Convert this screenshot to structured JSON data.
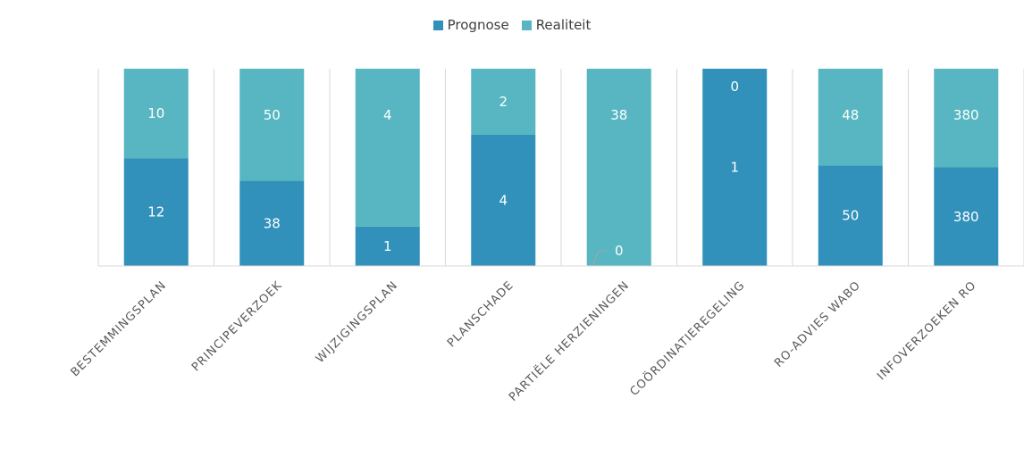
{
  "chart_data": {
    "type": "bar",
    "stacked": true,
    "normalized": true,
    "categories": [
      "BESTEMMINGSPLAN",
      "PRINCIPEVERZOEK",
      "WIJZIGINGSPLAN",
      "PLANSCHADE",
      "PARTIËLE HERZIENINGEN",
      "COÖRDINATIEREGELING",
      "RO-ADVIES WABO",
      "INFOVERZOEKEN RO"
    ],
    "series": [
      {
        "name": "Prognose",
        "values": [
          12,
          38,
          1,
          4,
          0,
          1,
          50,
          380
        ],
        "color": "#3191ba"
      },
      {
        "name": "Realiteit",
        "values": [
          10,
          50,
          4,
          2,
          38,
          0,
          48,
          380
        ],
        "color": "#57b6c1"
      }
    ],
    "grid": true,
    "legend_position": "top-center"
  }
}
